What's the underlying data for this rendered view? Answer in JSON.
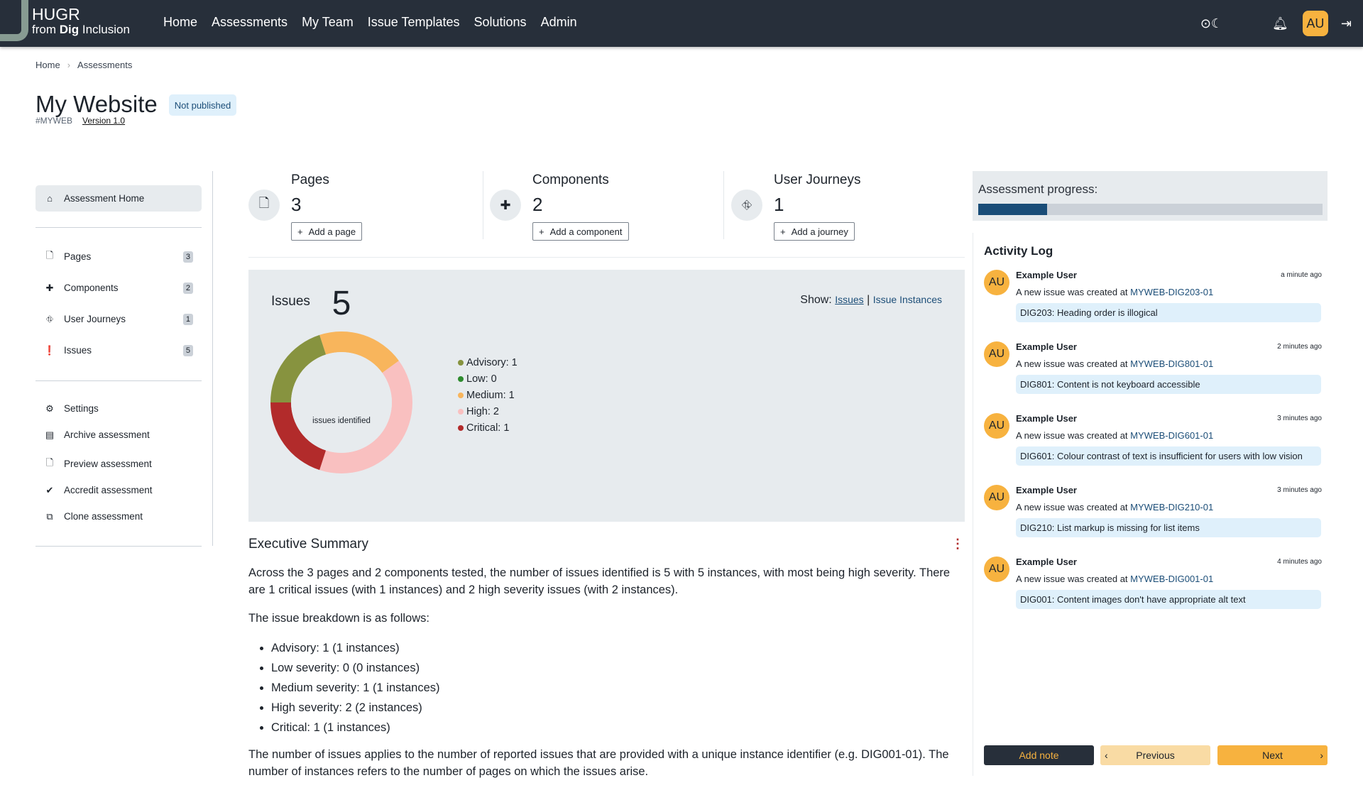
{
  "nav": {
    "brand_line1": "HUGR",
    "brand_from": "from ",
    "brand_bold": "Dig",
    "brand_rest": " Inclusion",
    "links": [
      "Home",
      "Assessments",
      "My Team",
      "Issue Templates",
      "Solutions",
      "Admin"
    ],
    "avatar": "AU"
  },
  "breadcrumb": [
    "Home",
    "Assessments"
  ],
  "header": {
    "title": "My Website",
    "status": "Not published",
    "code": "#MYWEB",
    "version": "Version 1.0"
  },
  "sidebar": {
    "home": "Assessment Home",
    "items": [
      {
        "label": "Pages",
        "count": "3"
      },
      {
        "label": "Components",
        "count": "2"
      },
      {
        "label": "User Journeys",
        "count": "1"
      },
      {
        "label": "Issues",
        "count": "5"
      }
    ],
    "actions": [
      "Settings",
      "Archive assessment",
      "Preview assessment",
      "Accredit assessment",
      "Clone assessment"
    ]
  },
  "stats": [
    {
      "label": "Pages",
      "value": "3",
      "button": "Add a page"
    },
    {
      "label": "Components",
      "value": "2",
      "button": "Add a component"
    },
    {
      "label": "User Journeys",
      "value": "1",
      "button": "Add a journey"
    }
  ],
  "issues": {
    "title": "Issues",
    "show_label": "Show:",
    "show_issues": "Issues",
    "show_instances": "Issue Instances",
    "total": "5",
    "total_label": "issues identified"
  },
  "chart_data": {
    "type": "pie",
    "categories": [
      "Advisory",
      "Low",
      "Medium",
      "High",
      "Critical"
    ],
    "values": [
      1,
      0,
      1,
      2,
      1
    ],
    "legend_labels": [
      "Advisory: 1",
      "Low: 0",
      "Medium: 1",
      "High: 2",
      "Critical: 1"
    ],
    "colors": [
      "#87933f",
      "#2e8b2e",
      "#f8b55c",
      "#f9c0c0",
      "#b22b2b"
    ],
    "legend": "right"
  },
  "summary": {
    "title": "Executive Summary",
    "p1": "Across the 3 pages and 2 components tested, the number of issues identified is 5 with 5 instances, with most being high severity. There are 1 critical issues (with 1 instances) and 2 high severity issues (with 2 instances).",
    "p2": "The issue breakdown is as follows:",
    "list": [
      "Advisory: 1 (1 instances)",
      "Low severity: 0 (0 instances)",
      "Medium severity: 1 (1 instances)",
      "High severity: 2 (2 instances)",
      "Critical: 1 (1 instances)"
    ],
    "p3": "The number of issues applies to the number of reported issues that are provided with a unique instance identifier (e.g. DIG001-01). The number of instances refers to the number of pages on which the issues arise."
  },
  "progress": {
    "label": "Assessment progress:",
    "percent": 20
  },
  "activity": {
    "title": "Activity Log",
    "entries": [
      {
        "avatar": "AU",
        "user": "Example User",
        "time": "a minute ago",
        "msg": "A new issue was created at ",
        "link": "MYWEB-DIG203-01",
        "issue": "DIG203: Heading order is illogical"
      },
      {
        "avatar": "AU",
        "user": "Example User",
        "time": "2 minutes ago",
        "msg": "A new issue was created at ",
        "link": "MYWEB-DIG801-01",
        "issue": "DIG801: Content is not keyboard accessible"
      },
      {
        "avatar": "AU",
        "user": "Example User",
        "time": "3 minutes ago",
        "msg": "A new issue was created at ",
        "link": "MYWEB-DIG601-01",
        "issue": "DIG601: Colour contrast of text is insufficient for users with low vision"
      },
      {
        "avatar": "AU",
        "user": "Example User",
        "time": "3 minutes ago",
        "msg": "A new issue was created at ",
        "link": "MYWEB-DIG210-01",
        "issue": "DIG210: List markup is missing for list items"
      },
      {
        "avatar": "AU",
        "user": "Example User",
        "time": "4 minutes ago",
        "msg": "A new issue was created at ",
        "link": "MYWEB-DIG001-01",
        "issue": "DIG001: Content images don't have appropriate alt text"
      }
    ],
    "add_note": "Add note",
    "previous": "Previous",
    "next": "Next"
  }
}
